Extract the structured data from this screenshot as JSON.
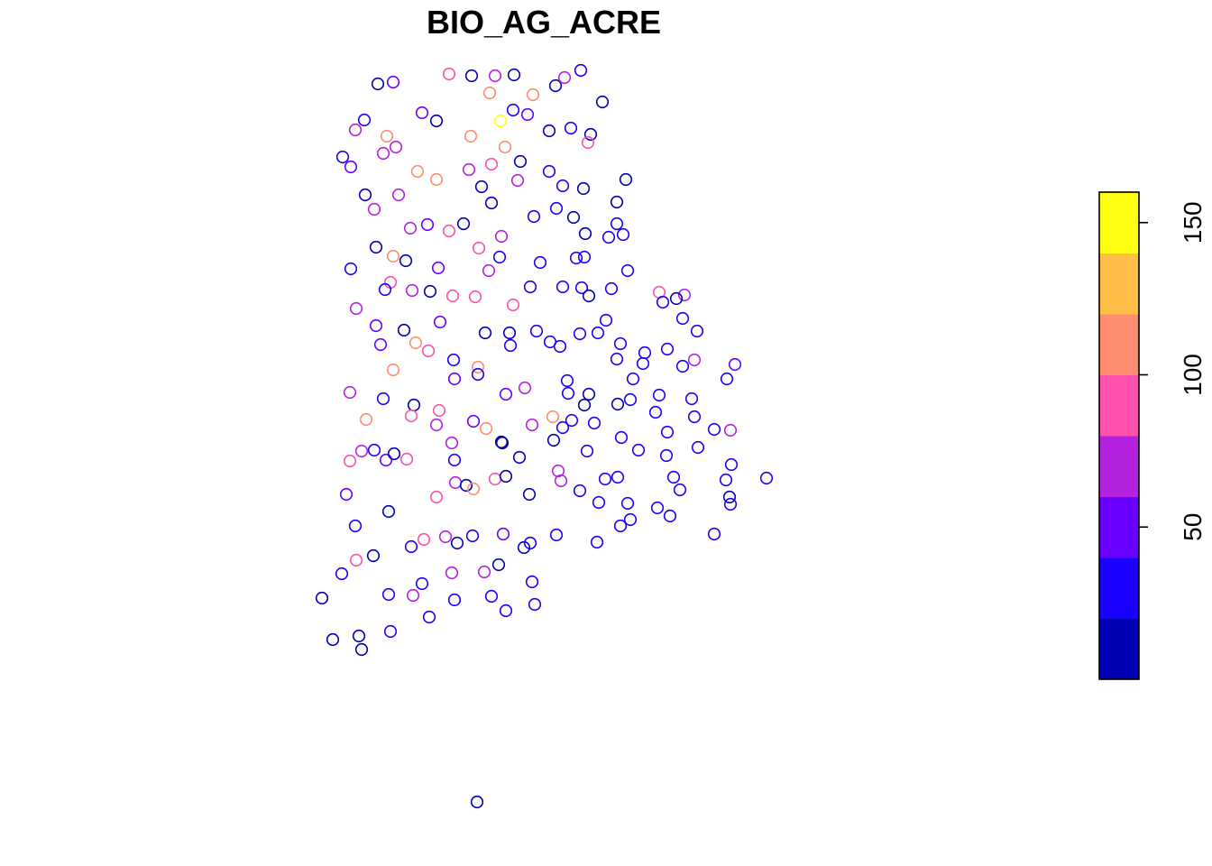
{
  "chart_data": {
    "type": "scatter",
    "title": "BIO_AG_ACRE",
    "xlabel": "",
    "ylabel": "",
    "grid": false,
    "legend": "right",
    "colorbar": {
      "min": 0,
      "max": 160,
      "breaks": [
        0,
        20,
        40,
        60,
        80,
        100,
        120,
        140,
        160
      ],
      "colors": [
        "#0000b5",
        "#1a00ff",
        "#6a00ff",
        "#b422e0",
        "#ff50ab",
        "#ff8c6e",
        "#ffbf47",
        "#ffff14"
      ],
      "ticks": [
        {
          "value": 50,
          "label": "50"
        },
        {
          "value": 100,
          "label": "100"
        },
        {
          "value": 150,
          "label": "150"
        }
      ]
    },
    "x_range": [
      0,
      1344
    ],
    "y_range": [
      0,
      960
    ],
    "points": [
      [
        419,
        93,
        5
      ],
      [
        436,
        91,
        45
      ],
      [
        498,
        82,
        85
      ],
      [
        523,
        84,
        5
      ],
      [
        549,
        84,
        70
      ],
      [
        570,
        83,
        5
      ],
      [
        616,
        95,
        5
      ],
      [
        626,
        86,
        65
      ],
      [
        644,
        78,
        20
      ],
      [
        668,
        113,
        5
      ],
      [
        543,
        103,
        100
      ],
      [
        591,
        105,
        100
      ],
      [
        404,
        133,
        35
      ],
      [
        468,
        125,
        45
      ],
      [
        484,
        134,
        5
      ],
      [
        569,
        122,
        30
      ],
      [
        585,
        127,
        55
      ],
      [
        555,
        134,
        150
      ],
      [
        609,
        145,
        5
      ],
      [
        633,
        142,
        20
      ],
      [
        655,
        149,
        5
      ],
      [
        394,
        144,
        65
      ],
      [
        429,
        151,
        100
      ],
      [
        439,
        163,
        65
      ],
      [
        425,
        170,
        75
      ],
      [
        380,
        174,
        20
      ],
      [
        389,
        185,
        45
      ],
      [
        522,
        151,
        100
      ],
      [
        560,
        163,
        100
      ],
      [
        577,
        179,
        5
      ],
      [
        652,
        158,
        95
      ],
      [
        463,
        190,
        100
      ],
      [
        484,
        199,
        100
      ],
      [
        520,
        188,
        75
      ],
      [
        545,
        182,
        90
      ],
      [
        574,
        200,
        75
      ],
      [
        609,
        190,
        30
      ],
      [
        624,
        206,
        20
      ],
      [
        534,
        207,
        5
      ],
      [
        647,
        209,
        10
      ],
      [
        694,
        199,
        5
      ],
      [
        405,
        216,
        5
      ],
      [
        442,
        216,
        70
      ],
      [
        415,
        232,
        70
      ],
      [
        545,
        225,
        5
      ],
      [
        617,
        231,
        20
      ],
      [
        684,
        224,
        5
      ],
      [
        592,
        240,
        20
      ],
      [
        636,
        241,
        5
      ],
      [
        684,
        248,
        20
      ],
      [
        649,
        259,
        5
      ],
      [
        455,
        253,
        75
      ],
      [
        474,
        249,
        55
      ],
      [
        498,
        256,
        85
      ],
      [
        514,
        248,
        5
      ],
      [
        556,
        262,
        65
      ],
      [
        675,
        263,
        20
      ],
      [
        691,
        260,
        20
      ],
      [
        417,
        274,
        5
      ],
      [
        531,
        275,
        90
      ],
      [
        554,
        285,
        20
      ],
      [
        436,
        284,
        100
      ],
      [
        450,
        289,
        5
      ],
      [
        599,
        291,
        20
      ],
      [
        639,
        286,
        20
      ],
      [
        648,
        285,
        20
      ],
      [
        389,
        298,
        20
      ],
      [
        486,
        297,
        45
      ],
      [
        542,
        300,
        70
      ],
      [
        696,
        300,
        20
      ],
      [
        433,
        313,
        90
      ],
      [
        427,
        321,
        20
      ],
      [
        457,
        322,
        65
      ],
      [
        477,
        323,
        5
      ],
      [
        502,
        328,
        80
      ],
      [
        527,
        329,
        85
      ],
      [
        569,
        338,
        90
      ],
      [
        588,
        318,
        20
      ],
      [
        624,
        318,
        20
      ],
      [
        645,
        319,
        20
      ],
      [
        653,
        328,
        5
      ],
      [
        678,
        320,
        20
      ],
      [
        731,
        324,
        90
      ],
      [
        759,
        327,
        75
      ],
      [
        735,
        335,
        20
      ],
      [
        750,
        331,
        5
      ],
      [
        395,
        342,
        65
      ],
      [
        417,
        361,
        55
      ],
      [
        448,
        366,
        5
      ],
      [
        488,
        357,
        50
      ],
      [
        538,
        369,
        5
      ],
      [
        565,
        369,
        5
      ],
      [
        595,
        367,
        20
      ],
      [
        672,
        355,
        20
      ],
      [
        757,
        353,
        20
      ],
      [
        773,
        367,
        20
      ],
      [
        422,
        382,
        50
      ],
      [
        461,
        380,
        100
      ],
      [
        475,
        389,
        90
      ],
      [
        566,
        383,
        20
      ],
      [
        610,
        379,
        20
      ],
      [
        621,
        384,
        20
      ],
      [
        643,
        370,
        20
      ],
      [
        663,
        369,
        20
      ],
      [
        688,
        381,
        20
      ],
      [
        715,
        391,
        20
      ],
      [
        740,
        387,
        20
      ],
      [
        436,
        410,
        100
      ],
      [
        503,
        399,
        20
      ],
      [
        530,
        407,
        100
      ],
      [
        684,
        398,
        20
      ],
      [
        713,
        403,
        20
      ],
      [
        770,
        399,
        70
      ],
      [
        815,
        404,
        55
      ],
      [
        757,
        406,
        20
      ],
      [
        504,
        420,
        55
      ],
      [
        530,
        415,
        20
      ],
      [
        629,
        422,
        20
      ],
      [
        702,
        420,
        20
      ],
      [
        806,
        420,
        20
      ],
      [
        388,
        435,
        65
      ],
      [
        425,
        442,
        20
      ],
      [
        459,
        449,
        5
      ],
      [
        561,
        437,
        55
      ],
      [
        582,
        430,
        70
      ],
      [
        630,
        436,
        20
      ],
      [
        653,
        437,
        5
      ],
      [
        699,
        443,
        20
      ],
      [
        731,
        438,
        20
      ],
      [
        767,
        442,
        20
      ],
      [
        487,
        455,
        90
      ],
      [
        406,
        465,
        100
      ],
      [
        456,
        461,
        85
      ],
      [
        484,
        471,
        70
      ],
      [
        525,
        467,
        55
      ],
      [
        539,
        475,
        100
      ],
      [
        613,
        462,
        100
      ],
      [
        634,
        466,
        20
      ],
      [
        648,
        449,
        5
      ],
      [
        659,
        469,
        20
      ],
      [
        685,
        448,
        5
      ],
      [
        727,
        457,
        20
      ],
      [
        770,
        462,
        20
      ],
      [
        792,
        476,
        20
      ],
      [
        810,
        477,
        65
      ],
      [
        501,
        491,
        70
      ],
      [
        556,
        490,
        5
      ],
      [
        557,
        491,
        5
      ],
      [
        590,
        471,
        65
      ],
      [
        624,
        474,
        20
      ],
      [
        614,
        488,
        5
      ],
      [
        651,
        500,
        20
      ],
      [
        689,
        485,
        20
      ],
      [
        708,
        499,
        20
      ],
      [
        740,
        479,
        20
      ],
      [
        774,
        496,
        20
      ],
      [
        388,
        511,
        85
      ],
      [
        401,
        500,
        75
      ],
      [
        415,
        499,
        20
      ],
      [
        428,
        510,
        45
      ],
      [
        437,
        503,
        5
      ],
      [
        451,
        509,
        85
      ],
      [
        504,
        510,
        20
      ],
      [
        576,
        507,
        5
      ],
      [
        739,
        505,
        20
      ],
      [
        811,
        515,
        20
      ],
      [
        850,
        530,
        20
      ],
      [
        505,
        535,
        70
      ],
      [
        517,
        538,
        5
      ],
      [
        525,
        542,
        100
      ],
      [
        549,
        531,
        80
      ],
      [
        561,
        528,
        5
      ],
      [
        619,
        522,
        75
      ],
      [
        622,
        533,
        75
      ],
      [
        587,
        548,
        5
      ],
      [
        643,
        544,
        20
      ],
      [
        664,
        557,
        20
      ],
      [
        671,
        531,
        20
      ],
      [
        685,
        529,
        20
      ],
      [
        696,
        558,
        20
      ],
      [
        747,
        529,
        20
      ],
      [
        754,
        543,
        20
      ],
      [
        805,
        532,
        20
      ],
      [
        809,
        551,
        5
      ],
      [
        810,
        559,
        20
      ],
      [
        384,
        548,
        55
      ],
      [
        484,
        551,
        80
      ],
      [
        431,
        567,
        5
      ],
      [
        394,
        583,
        20
      ],
      [
        699,
        576,
        20
      ],
      [
        729,
        563,
        20
      ],
      [
        688,
        583,
        20
      ],
      [
        743,
        572,
        20
      ],
      [
        470,
        598,
        90
      ],
      [
        456,
        606,
        20
      ],
      [
        494,
        595,
        70
      ],
      [
        507,
        602,
        5
      ],
      [
        524,
        594,
        20
      ],
      [
        558,
        592,
        45
      ],
      [
        581,
        607,
        5
      ],
      [
        588,
        602,
        20
      ],
      [
        617,
        593,
        20
      ],
      [
        662,
        601,
        20
      ],
      [
        792,
        592,
        20
      ],
      [
        395,
        621,
        80
      ],
      [
        414,
        616,
        5
      ],
      [
        501,
        635,
        70
      ],
      [
        537,
        634,
        65
      ],
      [
        553,
        626,
        5
      ],
      [
        379,
        636,
        20
      ],
      [
        468,
        647,
        20
      ],
      [
        590,
        645,
        20
      ],
      [
        357,
        663,
        5
      ],
      [
        431,
        659,
        20
      ],
      [
        458,
        660,
        70
      ],
      [
        504,
        665,
        20
      ],
      [
        545,
        661,
        20
      ],
      [
        593,
        670,
        20
      ],
      [
        561,
        677,
        20
      ],
      [
        476,
        684,
        20
      ],
      [
        369,
        709,
        5
      ],
      [
        398,
        705,
        5
      ],
      [
        433,
        700,
        20
      ],
      [
        401,
        720,
        5
      ],
      [
        529,
        889,
        5
      ]
    ]
  }
}
